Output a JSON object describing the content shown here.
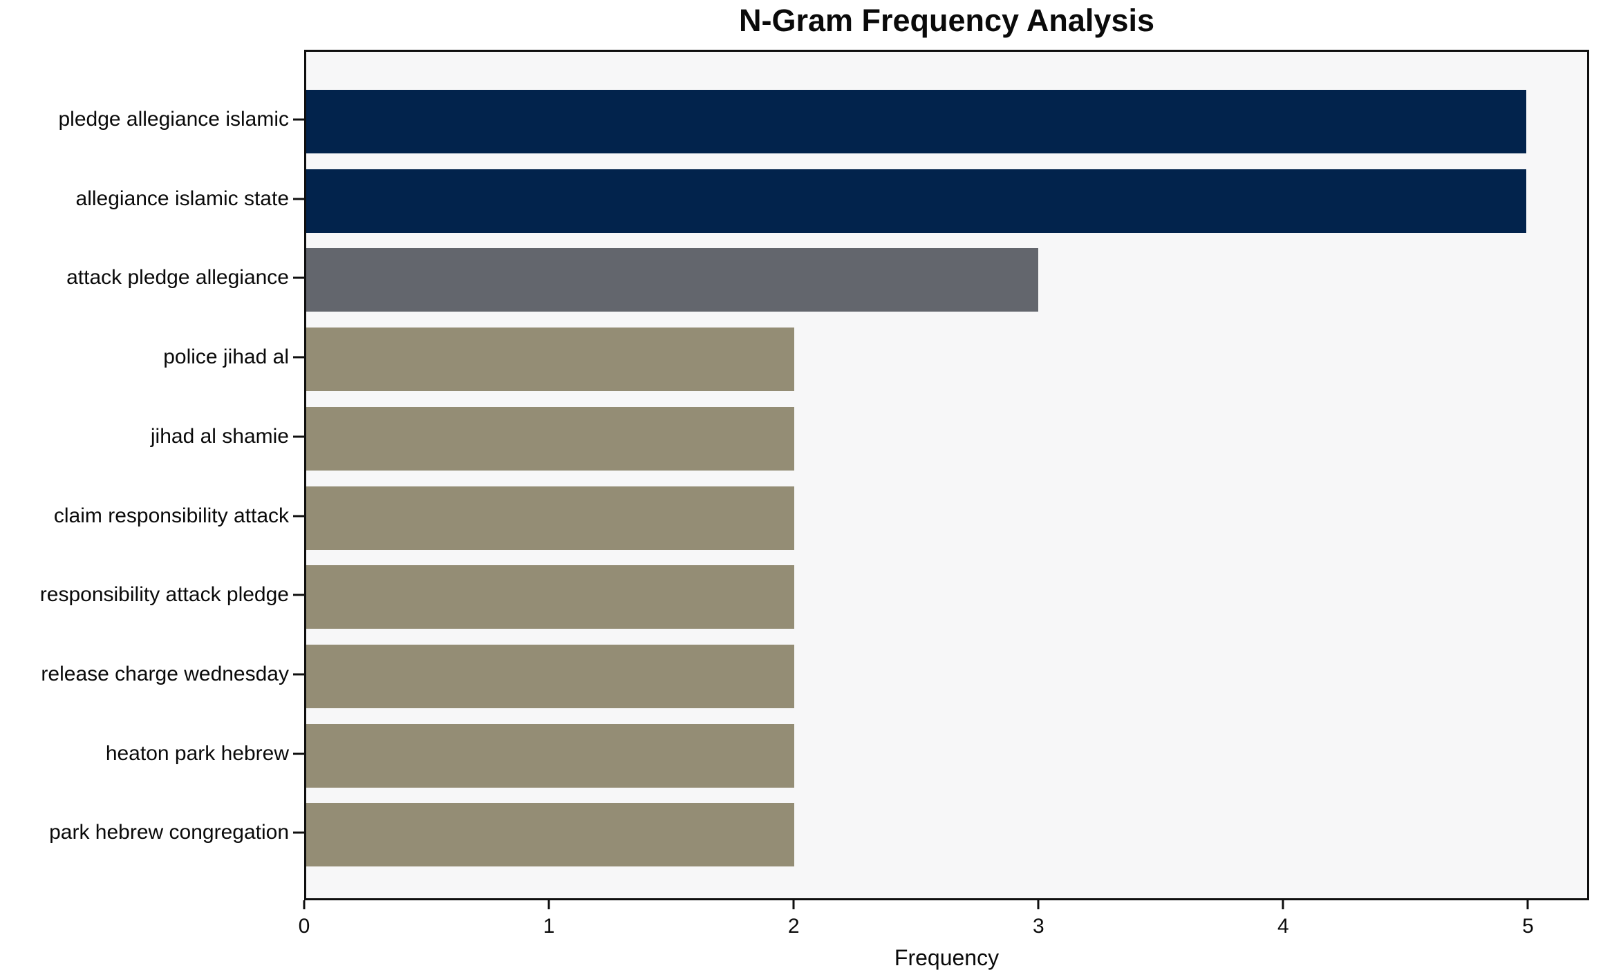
{
  "chart_data": {
    "type": "bar",
    "orientation": "horizontal",
    "title": "N-Gram Frequency Analysis",
    "xlabel": "Frequency",
    "ylabel": "",
    "categories": [
      "pledge allegiance islamic",
      "allegiance islamic state",
      "attack pledge allegiance",
      "police jihad al",
      "jihad al shamie",
      "claim responsibility attack",
      "responsibility attack pledge",
      "release charge wednesday",
      "heaton park hebrew",
      "park hebrew congregation"
    ],
    "values": [
      5,
      5,
      3,
      2,
      2,
      2,
      2,
      2,
      2,
      2
    ],
    "bar_colors": [
      "#02234c",
      "#02234c",
      "#63666d",
      "#948d75",
      "#948d75",
      "#948d75",
      "#948d75",
      "#948d75",
      "#948d75",
      "#948d75"
    ],
    "x_ticks": [
      0,
      1,
      2,
      3,
      4,
      5
    ],
    "x_tick_labels": [
      "0",
      "1",
      "2",
      "3",
      "4",
      "5"
    ],
    "xlim": [
      0,
      5.25
    ],
    "grid": false,
    "legend": null,
    "plot_background": "#f7f7f8",
    "figure_background": "#ffffff",
    "frame_color": "#0f0f0f"
  }
}
